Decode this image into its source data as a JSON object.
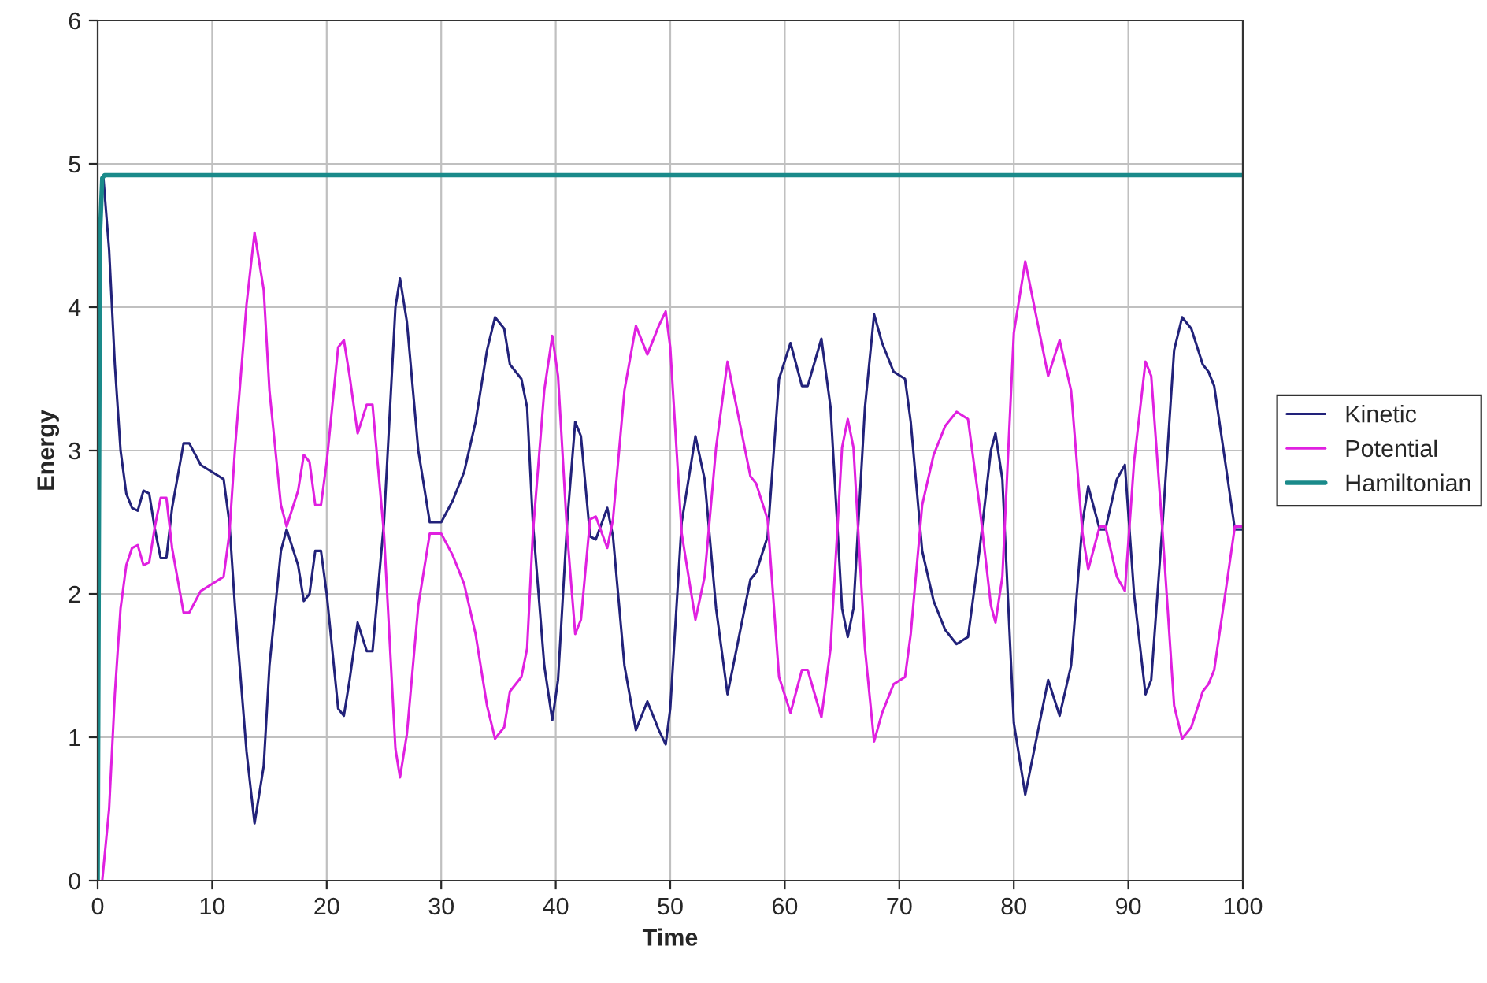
{
  "chart_data": {
    "type": "line",
    "xlabel": "Time",
    "ylabel": "Energy",
    "xlim": [
      0,
      100
    ],
    "ylim": [
      0,
      6
    ],
    "xticks": [
      0,
      10,
      20,
      30,
      40,
      50,
      60,
      70,
      80,
      90,
      100
    ],
    "yticks": [
      0,
      1,
      2,
      3,
      4,
      5,
      6
    ],
    "grid": true,
    "legend": "right",
    "marker": "none",
    "line_style": "solid",
    "series": [
      {
        "name": "Kinetic",
        "color": "#22227a",
        "x": [
          0.5,
          1,
          1.5,
          2,
          2.5,
          3,
          3.5,
          4,
          4.5,
          5,
          5.5,
          6,
          6.5,
          7.5,
          8,
          9,
          10,
          11,
          11.5,
          12,
          13,
          13.7,
          14.5,
          15,
          16,
          16.5,
          17.5,
          18,
          18.5,
          19,
          19.5,
          20,
          21,
          21.5,
          22,
          22.7,
          23.5,
          24,
          25,
          26,
          26.4,
          27,
          28,
          29,
          30,
          31,
          32,
          33,
          34,
          34.7,
          35.5,
          36,
          37,
          37.5,
          38,
          39,
          39.7,
          40.2,
          41,
          41.7,
          42.2,
          43,
          43.5,
          44.5,
          45,
          46,
          47,
          48,
          49,
          49.6,
          50,
          51,
          52.2,
          53,
          54,
          55,
          56,
          57,
          57.5,
          58.5,
          59.5,
          60.5,
          61.5,
          62,
          63.2,
          64,
          65,
          65.5,
          66,
          67,
          67.8,
          68.5,
          69.5,
          70.5,
          71,
          72,
          73,
          74,
          75,
          76,
          77,
          78,
          78.4,
          79,
          80,
          81,
          82,
          83,
          84,
          85,
          86,
          86.5,
          87.5,
          88,
          89,
          89.7,
          90.5,
          91.5,
          92,
          93,
          94,
          94.7,
          95.5,
          96.5,
          97,
          97.5,
          98.5,
          99.3,
          100
        ],
        "values": [
          4.9,
          4.4,
          3.6,
          3.0,
          2.7,
          2.6,
          2.58,
          2.72,
          2.7,
          2.45,
          2.25,
          2.25,
          2.6,
          3.05,
          3.05,
          2.9,
          2.85,
          2.8,
          2.5,
          1.9,
          0.9,
          0.4,
          0.8,
          1.5,
          2.3,
          2.45,
          2.2,
          1.95,
          2.0,
          2.3,
          2.3,
          2.0,
          1.2,
          1.15,
          1.4,
          1.8,
          1.6,
          1.6,
          2.5,
          4.0,
          4.2,
          3.9,
          3.0,
          2.5,
          2.5,
          2.65,
          2.85,
          3.2,
          3.7,
          3.93,
          3.85,
          3.6,
          3.5,
          3.3,
          2.5,
          1.5,
          1.12,
          1.4,
          2.5,
          3.2,
          3.1,
          2.4,
          2.38,
          2.6,
          2.4,
          1.5,
          1.05,
          1.25,
          1.05,
          0.95,
          1.2,
          2.5,
          3.1,
          2.8,
          1.9,
          1.3,
          1.7,
          2.1,
          2.15,
          2.4,
          3.5,
          3.75,
          3.45,
          3.45,
          3.78,
          3.3,
          1.9,
          1.7,
          1.9,
          3.3,
          3.95,
          3.75,
          3.55,
          3.5,
          3.2,
          2.3,
          1.95,
          1.75,
          1.65,
          1.7,
          2.3,
          3.0,
          3.12,
          2.8,
          1.1,
          0.6,
          1.0,
          1.4,
          1.15,
          1.5,
          2.5,
          2.75,
          2.45,
          2.45,
          2.8,
          2.9,
          2.0,
          1.3,
          1.4,
          2.5,
          3.7,
          3.93,
          3.85,
          3.6,
          3.55,
          3.45,
          2.9,
          2.45,
          2.45
        ]
      },
      {
        "name": "Potential",
        "color": "#e020e0",
        "x": [
          0.4,
          1,
          1.5,
          2,
          2.5,
          3,
          3.5,
          4,
          4.5,
          5,
          5.5,
          6,
          6.5,
          7.5,
          8,
          9,
          10,
          11,
          11.5,
          12,
          13,
          13.7,
          14.5,
          15,
          16,
          16.5,
          17.5,
          18,
          18.5,
          19,
          19.5,
          20,
          21,
          21.5,
          22,
          22.7,
          23.5,
          24,
          25,
          26,
          26.4,
          27,
          28,
          29,
          30,
          31,
          32,
          33,
          34,
          34.7,
          35.5,
          36,
          37,
          37.5,
          38,
          39,
          39.7,
          40.2,
          41,
          41.7,
          42.2,
          43,
          43.5,
          44.5,
          45,
          46,
          47,
          48,
          49,
          49.6,
          50,
          51,
          52.2,
          53,
          54,
          55,
          56,
          57,
          57.5,
          58.5,
          59.5,
          60.5,
          61.5,
          62,
          63.2,
          64,
          65,
          65.5,
          66,
          67,
          67.8,
          68.5,
          69.5,
          70.5,
          71,
          72,
          73,
          74,
          75,
          76,
          77,
          78,
          78.4,
          79,
          80,
          81,
          82,
          83,
          84,
          85,
          86,
          86.5,
          87.5,
          88,
          89,
          89.7,
          90.5,
          91.5,
          92,
          93,
          94,
          94.7,
          95.5,
          96.5,
          97,
          97.5,
          98.5,
          99.3,
          100
        ],
        "values": [
          0,
          0.5,
          1.3,
          1.9,
          2.2,
          2.32,
          2.34,
          2.2,
          2.22,
          2.47,
          2.67,
          2.67,
          2.32,
          1.87,
          1.87,
          2.02,
          2.07,
          2.12,
          2.42,
          3.02,
          4.02,
          4.52,
          4.12,
          3.42,
          2.62,
          2.47,
          2.72,
          2.97,
          2.92,
          2.62,
          2.62,
          2.92,
          3.72,
          3.77,
          3.52,
          3.12,
          3.32,
          3.32,
          2.42,
          0.92,
          0.72,
          1.02,
          1.92,
          2.42,
          2.42,
          2.27,
          2.07,
          1.72,
          1.22,
          0.99,
          1.07,
          1.32,
          1.42,
          1.62,
          2.42,
          3.42,
          3.8,
          3.52,
          2.42,
          1.72,
          1.82,
          2.52,
          2.54,
          2.32,
          2.52,
          3.42,
          3.87,
          3.67,
          3.87,
          3.97,
          3.72,
          2.42,
          1.82,
          2.12,
          3.02,
          3.62,
          3.22,
          2.82,
          2.77,
          2.52,
          1.42,
          1.17,
          1.47,
          1.47,
          1.14,
          1.62,
          3.02,
          3.22,
          3.02,
          1.62,
          0.97,
          1.17,
          1.37,
          1.42,
          1.72,
          2.62,
          2.97,
          3.17,
          3.27,
          3.22,
          2.62,
          1.92,
          1.8,
          2.12,
          3.82,
          4.32,
          3.92,
          3.52,
          3.77,
          3.42,
          2.42,
          2.17,
          2.47,
          2.47,
          2.12,
          2.02,
          2.92,
          3.62,
          3.52,
          2.42,
          1.22,
          0.99,
          1.07,
          1.32,
          1.37,
          1.47,
          2.02,
          2.47,
          2.47
        ]
      },
      {
        "name": "Hamiltonian",
        "color": "#1a8a8a",
        "x": [
          0,
          0.2,
          0.4,
          0.6,
          100
        ],
        "values": [
          0,
          4.5,
          4.9,
          4.92,
          4.92
        ]
      }
    ]
  }
}
